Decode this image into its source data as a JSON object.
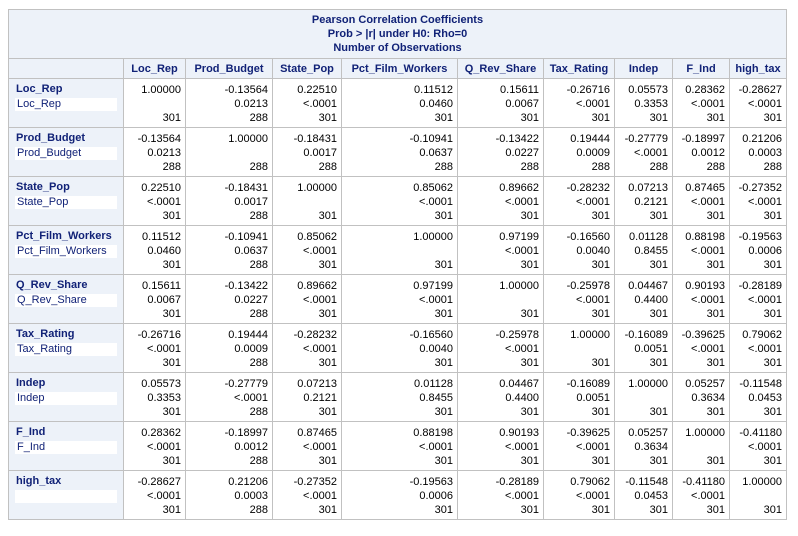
{
  "title_lines": [
    "Pearson Correlation Coefficients",
    "Prob > |r| under H0: Rho=0",
    "Number of Observations"
  ],
  "columns": [
    "Loc_Rep",
    "Prod_Budget",
    "State_Pop",
    "Pct_Film_Workers",
    "Q_Rev_Share",
    "Tax_Rating",
    "Indep",
    "F_Ind",
    "high_tax"
  ],
  "rows": [
    {
      "label": "Loc_Rep",
      "sublabel": "Loc_Rep",
      "cells": [
        {
          "r": "1.00000",
          "p": "",
          "n": "301"
        },
        {
          "r": "-0.13564",
          "p": "0.0213",
          "n": "288"
        },
        {
          "r": "0.22510",
          "p": "<.0001",
          "n": "301"
        },
        {
          "r": "0.11512",
          "p": "0.0460",
          "n": "301"
        },
        {
          "r": "0.15611",
          "p": "0.0067",
          "n": "301"
        },
        {
          "r": "-0.26716",
          "p": "<.0001",
          "n": "301"
        },
        {
          "r": "0.05573",
          "p": "0.3353",
          "n": "301"
        },
        {
          "r": "0.28362",
          "p": "<.0001",
          "n": "301"
        },
        {
          "r": "-0.28627",
          "p": "<.0001",
          "n": "301"
        }
      ]
    },
    {
      "label": "Prod_Budget",
      "sublabel": "Prod_Budget",
      "cells": [
        {
          "r": "-0.13564",
          "p": "0.0213",
          "n": "288"
        },
        {
          "r": "1.00000",
          "p": "",
          "n": "288"
        },
        {
          "r": "-0.18431",
          "p": "0.0017",
          "n": "288"
        },
        {
          "r": "-0.10941",
          "p": "0.0637",
          "n": "288"
        },
        {
          "r": "-0.13422",
          "p": "0.0227",
          "n": "288"
        },
        {
          "r": "0.19444",
          "p": "0.0009",
          "n": "288"
        },
        {
          "r": "-0.27779",
          "p": "<.0001",
          "n": "288"
        },
        {
          "r": "-0.18997",
          "p": "0.0012",
          "n": "288"
        },
        {
          "r": "0.21206",
          "p": "0.0003",
          "n": "288"
        }
      ]
    },
    {
      "label": "State_Pop",
      "sublabel": "State_Pop",
      "cells": [
        {
          "r": "0.22510",
          "p": "<.0001",
          "n": "301"
        },
        {
          "r": "-0.18431",
          "p": "0.0017",
          "n": "288"
        },
        {
          "r": "1.00000",
          "p": "",
          "n": "301"
        },
        {
          "r": "0.85062",
          "p": "<.0001",
          "n": "301"
        },
        {
          "r": "0.89662",
          "p": "<.0001",
          "n": "301"
        },
        {
          "r": "-0.28232",
          "p": "<.0001",
          "n": "301"
        },
        {
          "r": "0.07213",
          "p": "0.2121",
          "n": "301"
        },
        {
          "r": "0.87465",
          "p": "<.0001",
          "n": "301"
        },
        {
          "r": "-0.27352",
          "p": "<.0001",
          "n": "301"
        }
      ]
    },
    {
      "label": "Pct_Film_Workers",
      "sublabel": "Pct_Film_Workers",
      "cells": [
        {
          "r": "0.11512",
          "p": "0.0460",
          "n": "301"
        },
        {
          "r": "-0.10941",
          "p": "0.0637",
          "n": "288"
        },
        {
          "r": "0.85062",
          "p": "<.0001",
          "n": "301"
        },
        {
          "r": "1.00000",
          "p": "",
          "n": "301"
        },
        {
          "r": "0.97199",
          "p": "<.0001",
          "n": "301"
        },
        {
          "r": "-0.16560",
          "p": "0.0040",
          "n": "301"
        },
        {
          "r": "0.01128",
          "p": "0.8455",
          "n": "301"
        },
        {
          "r": "0.88198",
          "p": "<.0001",
          "n": "301"
        },
        {
          "r": "-0.19563",
          "p": "0.0006",
          "n": "301"
        }
      ]
    },
    {
      "label": "Q_Rev_Share",
      "sublabel": "Q_Rev_Share",
      "cells": [
        {
          "r": "0.15611",
          "p": "0.0067",
          "n": "301"
        },
        {
          "r": "-0.13422",
          "p": "0.0227",
          "n": "288"
        },
        {
          "r": "0.89662",
          "p": "<.0001",
          "n": "301"
        },
        {
          "r": "0.97199",
          "p": "<.0001",
          "n": "301"
        },
        {
          "r": "1.00000",
          "p": "",
          "n": "301"
        },
        {
          "r": "-0.25978",
          "p": "<.0001",
          "n": "301"
        },
        {
          "r": "0.04467",
          "p": "0.4400",
          "n": "301"
        },
        {
          "r": "0.90193",
          "p": "<.0001",
          "n": "301"
        },
        {
          "r": "-0.28189",
          "p": "<.0001",
          "n": "301"
        }
      ]
    },
    {
      "label": "Tax_Rating",
      "sublabel": "Tax_Rating",
      "cells": [
        {
          "r": "-0.26716",
          "p": "<.0001",
          "n": "301"
        },
        {
          "r": "0.19444",
          "p": "0.0009",
          "n": "288"
        },
        {
          "r": "-0.28232",
          "p": "<.0001",
          "n": "301"
        },
        {
          "r": "-0.16560",
          "p": "0.0040",
          "n": "301"
        },
        {
          "r": "-0.25978",
          "p": "<.0001",
          "n": "301"
        },
        {
          "r": "1.00000",
          "p": "",
          "n": "301"
        },
        {
          "r": "-0.16089",
          "p": "0.0051",
          "n": "301"
        },
        {
          "r": "-0.39625",
          "p": "<.0001",
          "n": "301"
        },
        {
          "r": "0.79062",
          "p": "<.0001",
          "n": "301"
        }
      ]
    },
    {
      "label": "Indep",
      "sublabel": "Indep",
      "cells": [
        {
          "r": "0.05573",
          "p": "0.3353",
          "n": "301"
        },
        {
          "r": "-0.27779",
          "p": "<.0001",
          "n": "288"
        },
        {
          "r": "0.07213",
          "p": "0.2121",
          "n": "301"
        },
        {
          "r": "0.01128",
          "p": "0.8455",
          "n": "301"
        },
        {
          "r": "0.04467",
          "p": "0.4400",
          "n": "301"
        },
        {
          "r": "-0.16089",
          "p": "0.0051",
          "n": "301"
        },
        {
          "r": "1.00000",
          "p": "",
          "n": "301"
        },
        {
          "r": "0.05257",
          "p": "0.3634",
          "n": "301"
        },
        {
          "r": "-0.11548",
          "p": "0.0453",
          "n": "301"
        }
      ]
    },
    {
      "label": "F_Ind",
      "sublabel": "F_Ind",
      "cells": [
        {
          "r": "0.28362",
          "p": "<.0001",
          "n": "301"
        },
        {
          "r": "-0.18997",
          "p": "0.0012",
          "n": "288"
        },
        {
          "r": "0.87465",
          "p": "<.0001",
          "n": "301"
        },
        {
          "r": "0.88198",
          "p": "<.0001",
          "n": "301"
        },
        {
          "r": "0.90193",
          "p": "<.0001",
          "n": "301"
        },
        {
          "r": "-0.39625",
          "p": "<.0001",
          "n": "301"
        },
        {
          "r": "0.05257",
          "p": "0.3634",
          "n": "301"
        },
        {
          "r": "1.00000",
          "p": "",
          "n": "301"
        },
        {
          "r": "-0.41180",
          "p": "<.0001",
          "n": "301"
        }
      ]
    },
    {
      "label": "high_tax",
      "sublabel": "",
      "cells": [
        {
          "r": "-0.28627",
          "p": "<.0001",
          "n": "301"
        },
        {
          "r": "0.21206",
          "p": "0.0003",
          "n": "288"
        },
        {
          "r": "-0.27352",
          "p": "<.0001",
          "n": "301"
        },
        {
          "r": "-0.19563",
          "p": "0.0006",
          "n": "301"
        },
        {
          "r": "-0.28189",
          "p": "<.0001",
          "n": "301"
        },
        {
          "r": "0.79062",
          "p": "<.0001",
          "n": "301"
        },
        {
          "r": "-0.11548",
          "p": "0.0453",
          "n": "301"
        },
        {
          "r": "-0.41180",
          "p": "<.0001",
          "n": "301"
        },
        {
          "r": "1.00000",
          "p": "",
          "n": "301"
        }
      ]
    }
  ]
}
